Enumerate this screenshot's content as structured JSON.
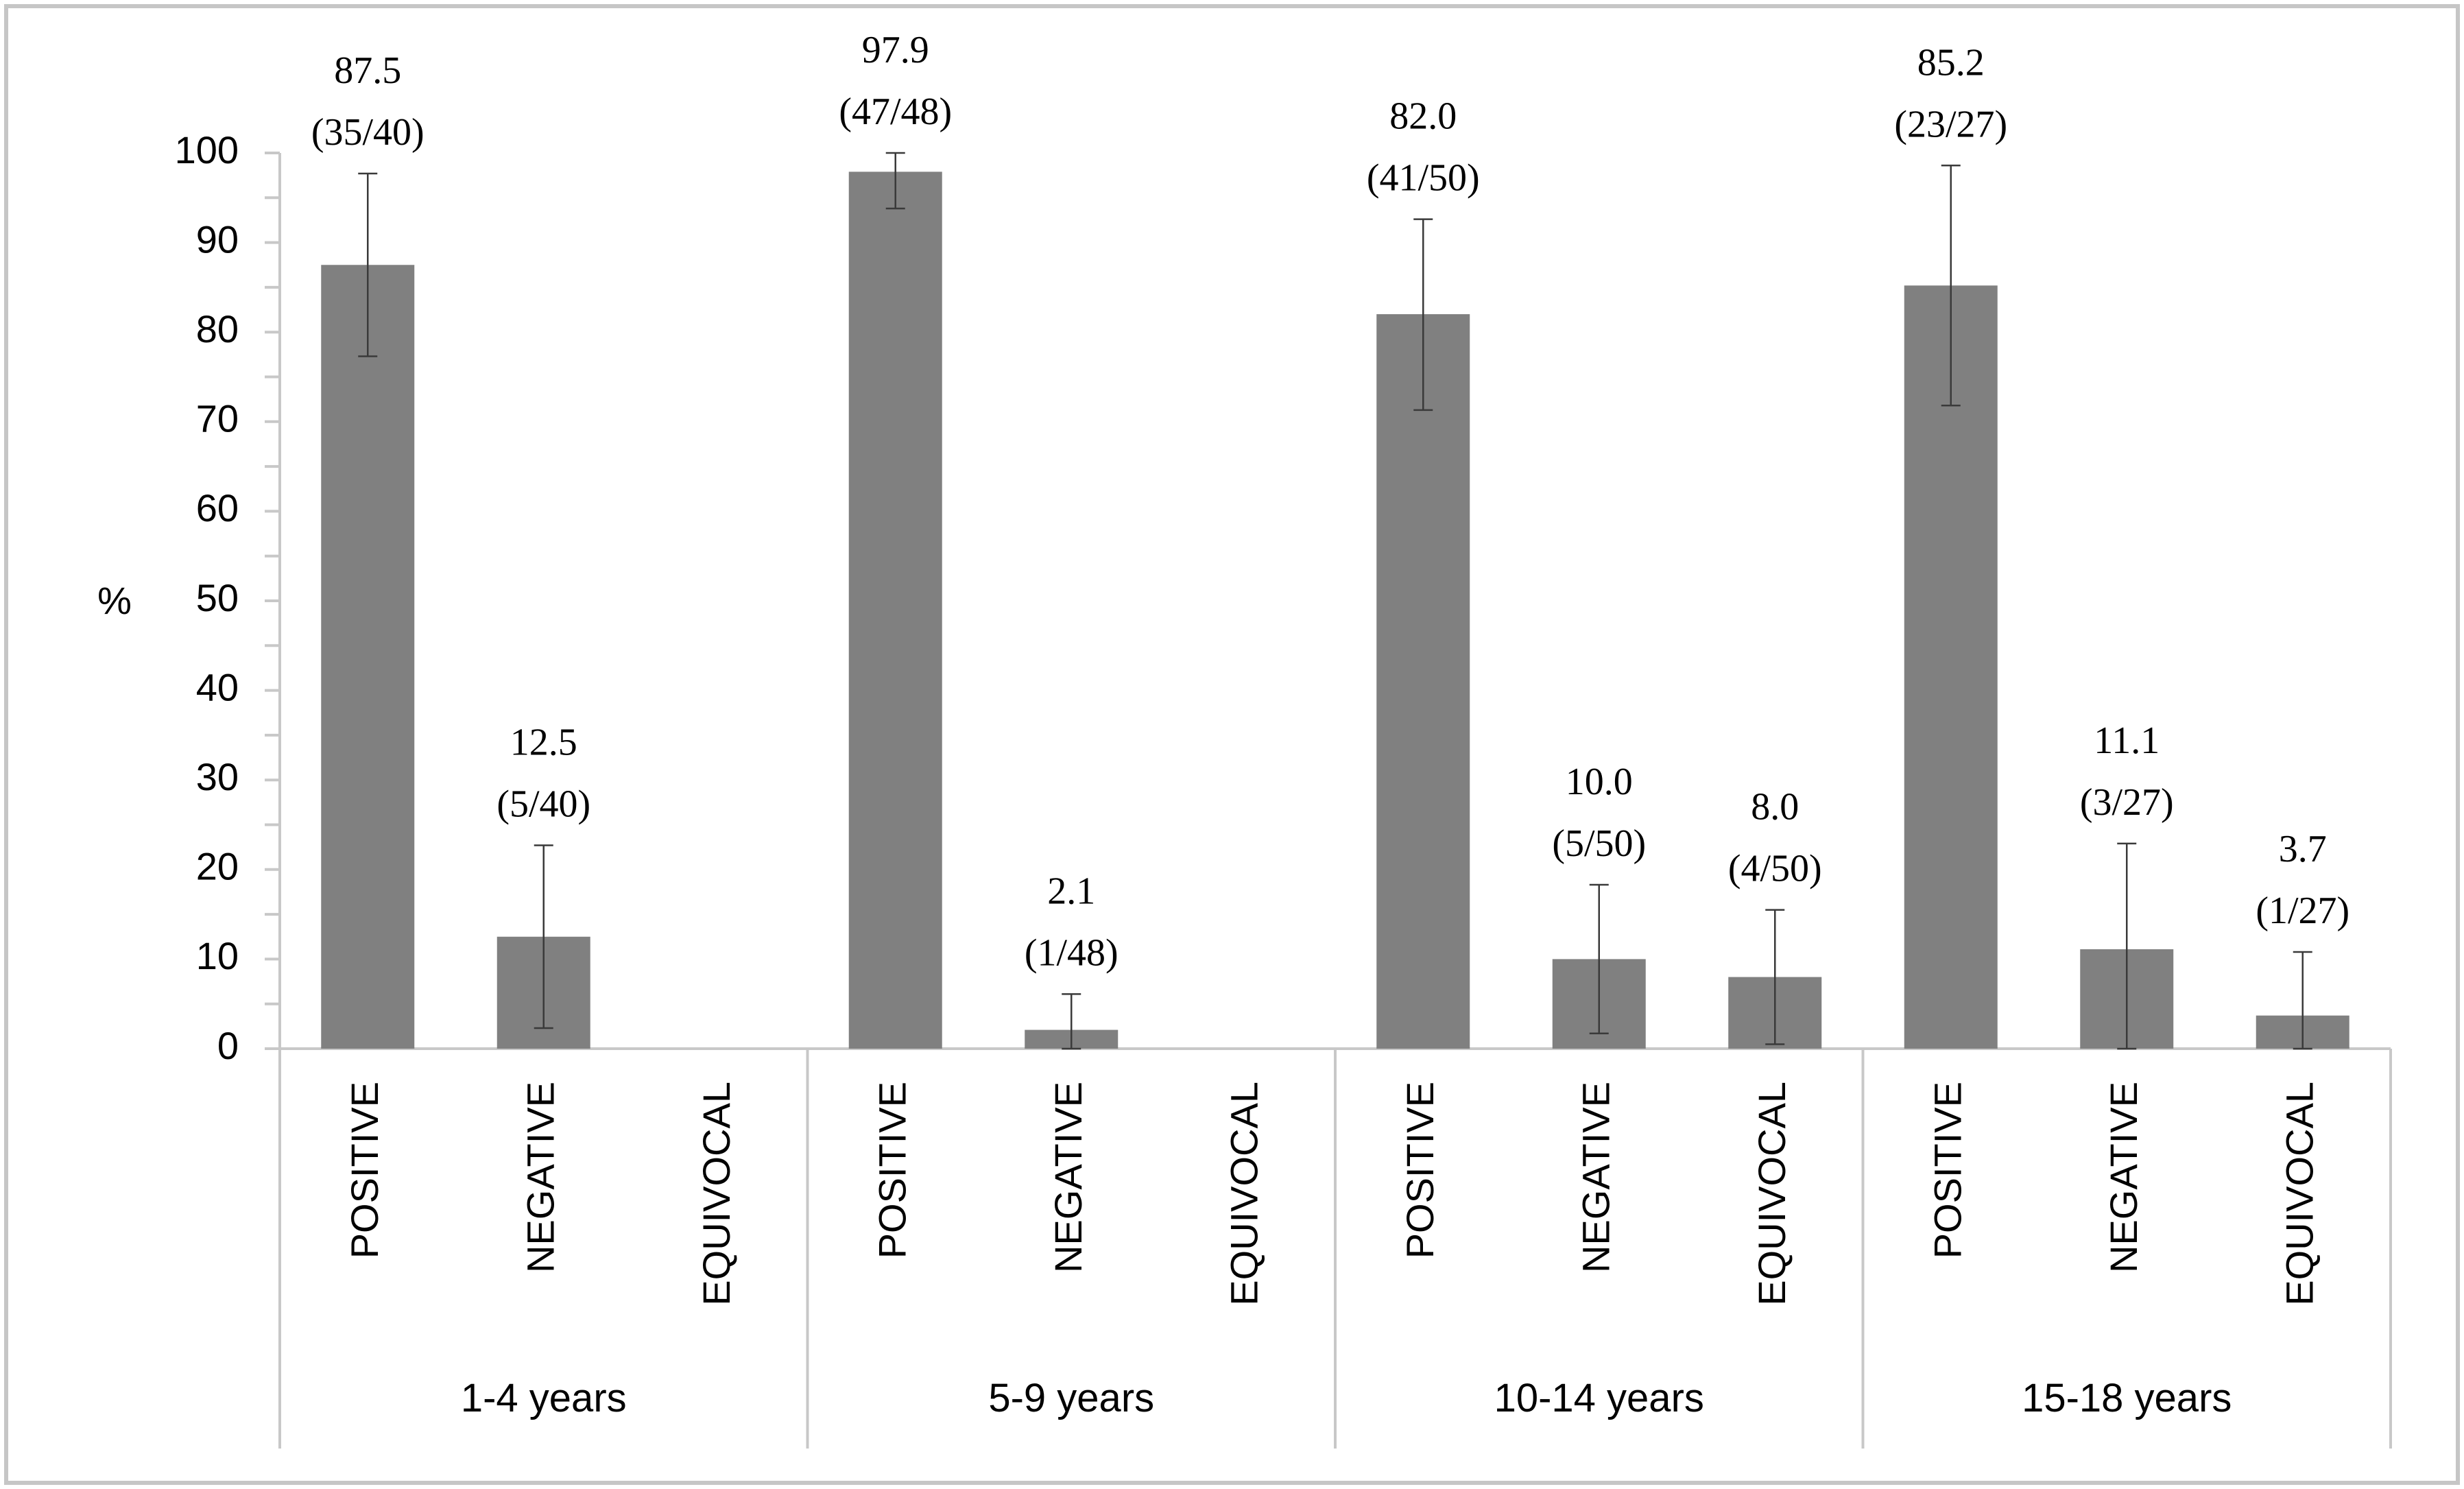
{
  "chart_data": {
    "type": "bar",
    "title": "",
    "xlabel": "",
    "ylabel": "%",
    "ylim": [
      0,
      100
    ],
    "yticks": [
      "0",
      "10",
      "20",
      "30",
      "40",
      "50",
      "60",
      "70",
      "80",
      "90",
      "100"
    ],
    "grid": false,
    "legend": "none",
    "bar_color": "#808080",
    "axis_color": "#c8c8c8",
    "groups": [
      {
        "label": "1-4 years",
        "bars": [
          {
            "category": "POSITIVE",
            "value": 87.5,
            "label": "87.5",
            "fraction": "(35/40)",
            "err_low": 77.3,
            "err_high": 97.7
          },
          {
            "category": "NEGATIVE",
            "value": 12.5,
            "label": "12.5",
            "fraction": "(5/40)",
            "err_low": 2.3,
            "err_high": 22.7
          },
          {
            "category": "EQUIVOCAL",
            "value": null,
            "label": null,
            "fraction": null,
            "err_low": null,
            "err_high": null
          }
        ]
      },
      {
        "label": "5-9 years",
        "bars": [
          {
            "category": "POSITIVE",
            "value": 97.9,
            "label": "97.9",
            "fraction": "(47/48)",
            "err_low": 93.8,
            "err_high": 100
          },
          {
            "category": "NEGATIVE",
            "value": 2.1,
            "label": "2.1",
            "fraction": "(1/48)",
            "err_low": 0,
            "err_high": 6.1
          },
          {
            "category": "EQUIVOCAL",
            "value": null,
            "label": null,
            "fraction": null,
            "err_low": null,
            "err_high": null
          }
        ]
      },
      {
        "label": "10-14 years",
        "bars": [
          {
            "category": "POSITIVE",
            "value": 82.0,
            "label": "82.0",
            "fraction": "(41/50)",
            "err_low": 71.3,
            "err_high": 92.6
          },
          {
            "category": "NEGATIVE",
            "value": 10.0,
            "label": "10.0",
            "fraction": "(5/50)",
            "err_low": 1.7,
            "err_high": 18.3
          },
          {
            "category": "EQUIVOCAL",
            "value": 8.0,
            "label": "8.0",
            "fraction": "(4/50)",
            "err_low": 0.5,
            "err_high": 15.5
          }
        ]
      },
      {
        "label": "15-18 years",
        "bars": [
          {
            "category": "POSITIVE",
            "value": 85.2,
            "label": "85.2",
            "fraction": "(23/27)",
            "err_low": 71.8,
            "err_high": 98.6
          },
          {
            "category": "NEGATIVE",
            "value": 11.1,
            "label": "11.1",
            "fraction": "(3/27)",
            "err_low": 0,
            "err_high": 22.9
          },
          {
            "category": "EQUIVOCAL",
            "value": 3.7,
            "label": "3.7",
            "fraction": "(1/27)",
            "err_low": 0,
            "err_high": 10.8
          }
        ]
      }
    ]
  }
}
